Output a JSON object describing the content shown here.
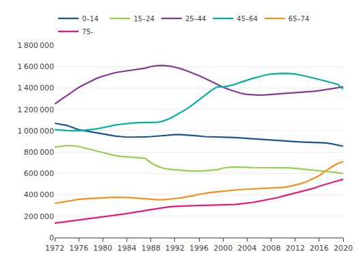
{
  "chart_data": {
    "type": "line",
    "x": [
      1972,
      1973,
      1974,
      1975,
      1976,
      1977,
      1978,
      1979,
      1980,
      1981,
      1982,
      1983,
      1984,
      1985,
      1986,
      1987,
      1988,
      1989,
      1990,
      1991,
      1992,
      1993,
      1994,
      1995,
      1996,
      1997,
      1998,
      1999,
      2000,
      2001,
      2002,
      2003,
      2004,
      2005,
      2006,
      2007,
      2008,
      2009,
      2010,
      2011,
      2012,
      2013,
      2014,
      2015,
      2016,
      2017,
      2018,
      2019,
      2020
    ],
    "series": [
      {
        "name": "0–14",
        "color": "#1a5496",
        "values": [
          1070000,
          1060000,
          1050000,
          1030000,
          1010000,
          1000000,
          990000,
          980000,
          970000,
          960000,
          950000,
          945000,
          940000,
          940000,
          940000,
          942000,
          945000,
          950000,
          955000,
          960000,
          963000,
          963000,
          960000,
          955000,
          950000,
          945000,
          942000,
          940000,
          940000,
          938000,
          936000,
          932000,
          928000,
          924000,
          920000,
          915000,
          910000,
          906000,
          902000,
          900000,
          898000,
          895000,
          892000,
          890000,
          888000,
          886000,
          878000,
          868000,
          855000
        ]
      },
      {
        "name": "15–24",
        "color": "#92d050",
        "values": [
          845000,
          855000,
          860000,
          860000,
          852000,
          840000,
          825000,
          810000,
          795000,
          780000,
          768000,
          760000,
          755000,
          752000,
          748000,
          742000,
          700000,
          670000,
          650000,
          640000,
          635000,
          628000,
          625000,
          622000,
          622000,
          625000,
          630000,
          635000,
          650000,
          658000,
          660000,
          660000,
          658000,
          655000,
          655000,
          655000,
          655000,
          655000,
          655000,
          652000,
          648000,
          643000,
          638000,
          633000,
          628000,
          622000,
          615000,
          608000,
          600000
        ]
      },
      {
        "name": "25–44",
        "color": "#893794",
        "values": [
          1250000,
          1290000,
          1330000,
          1370000,
          1405000,
          1435000,
          1465000,
          1490000,
          1510000,
          1528000,
          1542000,
          1552000,
          1560000,
          1565000,
          1575000,
          1585000,
          1600000,
          1608000,
          1610000,
          1605000,
          1595000,
          1580000,
          1560000,
          1540000,
          1515000,
          1490000,
          1462000,
          1435000,
          1408000,
          1385000,
          1365000,
          1350000,
          1340000,
          1335000,
          1333000,
          1335000,
          1340000,
          1345000,
          1348000,
          1352000,
          1355000,
          1358000,
          1362000,
          1368000,
          1375000,
          1383000,
          1390000,
          1398000,
          1410000
        ]
      },
      {
        "name": "45–64",
        "color": "#00b0a0",
        "values": [
          1010000,
          1005000,
          1002000,
          1000000,
          1000000,
          1005000,
          1010000,
          1018000,
          1028000,
          1040000,
          1053000,
          1060000,
          1068000,
          1072000,
          1075000,
          1075000,
          1075000,
          1078000,
          1090000,
          1110000,
          1140000,
          1170000,
          1205000,
          1245000,
          1290000,
          1335000,
          1375000,
          1410000,
          1410000,
          1420000,
          1435000,
          1455000,
          1475000,
          1490000,
          1505000,
          1520000,
          1530000,
          1535000,
          1537000,
          1535000,
          1530000,
          1520000,
          1508000,
          1495000,
          1480000,
          1465000,
          1450000,
          1435000,
          1390000
        ]
      },
      {
        "name": "65–74",
        "color": "#f4901e",
        "values": [
          320000,
          330000,
          340000,
          350000,
          358000,
          363000,
          367000,
          370000,
          373000,
          375000,
          377000,
          378000,
          375000,
          372000,
          368000,
          362000,
          358000,
          355000,
          355000,
          358000,
          365000,
          372000,
          380000,
          392000,
          405000,
          415000,
          422000,
          428000,
          435000,
          440000,
          445000,
          450000,
          453000,
          456000,
          458000,
          460000,
          463000,
          465000,
          470000,
          478000,
          490000,
          505000,
          525000,
          550000,
          580000,
          620000,
          658000,
          690000,
          710000
        ]
      },
      {
        "name": "75-",
        "color": "#e8197d",
        "values": [
          135000,
          142000,
          150000,
          158000,
          165000,
          173000,
          180000,
          188000,
          196000,
          203000,
          210000,
          217000,
          225000,
          233000,
          242000,
          252000,
          262000,
          272000,
          282000,
          288000,
          292000,
          295000,
          297000,
          299000,
          300000,
          302000,
          303000,
          303000,
          304000,
          306000,
          310000,
          316000,
          322000,
          330000,
          340000,
          350000,
          360000,
          373000,
          388000,
          402000,
          415000,
          428000,
          443000,
          460000,
          480000,
          498000,
          515000,
          530000,
          545000
        ]
      }
    ],
    "xlim": [
      1972,
      2020
    ],
    "xticks": [
      1972,
      1976,
      1980,
      1984,
      1988,
      1992,
      1996,
      2000,
      2004,
      2008,
      2012,
      2016,
      2020
    ],
    "ylim": [
      0,
      1800000
    ],
    "yticks": [
      0,
      {
        "value": 200000,
        "label": "200 000"
      },
      {
        "value": 400000,
        "label": "400 000"
      },
      {
        "value": 600000,
        "label": "600 000"
      },
      {
        "value": 800000,
        "label": "800 000"
      },
      {
        "value": 1000000,
        "label": "1 000 000"
      },
      {
        "value": 1200000,
        "label": "1 200 000"
      },
      {
        "value": 1400000,
        "label": "1 400 000"
      },
      {
        "value": 1600000,
        "label": "1 600 000"
      },
      {
        "value": 1800000,
        "label": "1 800 000"
      }
    ],
    "grid": "y",
    "legend": "upper left"
  }
}
